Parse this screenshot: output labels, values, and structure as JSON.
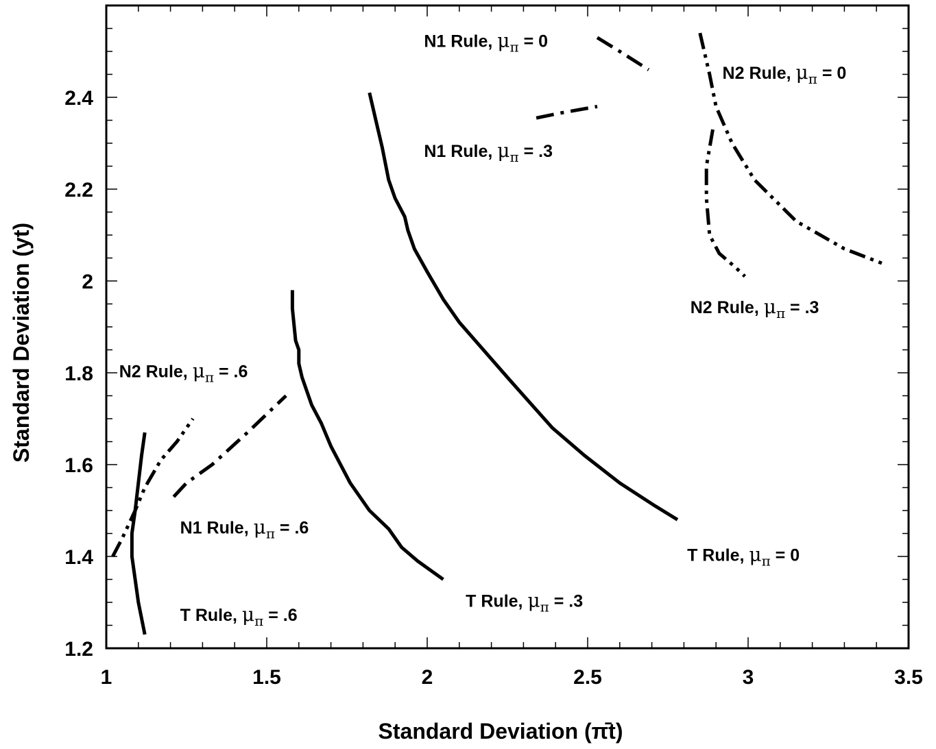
{
  "chart_data": {
    "type": "line",
    "title": "",
    "xlabel": "Standard Deviation (π̄t)",
    "ylabel": "Standard Deviation (yt)",
    "xlim": [
      1,
      3.5
    ],
    "ylim": [
      1.2,
      2.6
    ],
    "xticks": [
      1,
      1.5,
      2,
      2.5,
      3,
      3.5
    ],
    "xtick_labels": [
      "1",
      "1.5",
      "2",
      "2.5",
      "3",
      "3.5"
    ],
    "yticks": [
      1.2,
      1.4,
      1.6,
      1.8,
      2,
      2.2,
      2.4
    ],
    "ytick_labels": [
      "1.2",
      "1.4",
      "1.6",
      "1.8",
      "2",
      "2.2",
      "2.4"
    ],
    "x_minor_step": 0.1,
    "y_minor_step": 0.05,
    "grid": false,
    "legend": "none",
    "series": [
      {
        "name": "T Rule, μπ = 0",
        "style": "solid",
        "x": [
          1.82,
          1.84,
          1.86,
          1.88,
          1.9,
          1.93,
          1.94,
          1.96,
          2.0,
          2.05,
          2.1,
          2.15,
          2.25,
          2.39,
          2.49,
          2.6,
          2.71,
          2.78
        ],
        "y": [
          2.41,
          2.35,
          2.29,
          2.22,
          2.18,
          2.14,
          2.11,
          2.07,
          2.02,
          1.96,
          1.91,
          1.87,
          1.79,
          1.68,
          1.62,
          1.56,
          1.51,
          1.48
        ]
      },
      {
        "name": "T Rule, μπ = .3",
        "style": "solid",
        "x": [
          1.58,
          1.58,
          1.59,
          1.6,
          1.6,
          1.61,
          1.64,
          1.67,
          1.7,
          1.76,
          1.82,
          1.88,
          1.92,
          1.97,
          2.05
        ],
        "y": [
          1.98,
          1.94,
          1.87,
          1.85,
          1.82,
          1.79,
          1.73,
          1.69,
          1.64,
          1.56,
          1.5,
          1.46,
          1.42,
          1.39,
          1.35
        ]
      },
      {
        "name": "T Rule, μπ = .6",
        "style": "solid",
        "x": [
          1.12,
          1.11,
          1.1,
          1.09,
          1.08,
          1.08,
          1.09,
          1.1,
          1.12
        ],
        "y": [
          1.67,
          1.62,
          1.56,
          1.5,
          1.45,
          1.4,
          1.35,
          1.3,
          1.23
        ]
      },
      {
        "name": "N1 Rule, μπ = 0",
        "style": "dashdot",
        "x": [
          2.53,
          2.6,
          2.69
        ],
        "y": [
          2.53,
          2.5,
          2.46
        ]
      },
      {
        "name": "N1 Rule, μπ = .3",
        "style": "dashdot",
        "x": [
          2.34,
          2.41,
          2.53
        ],
        "y": [
          2.355,
          2.365,
          2.38
        ]
      },
      {
        "name": "N1 Rule, μπ = .6",
        "style": "dashdot",
        "x": [
          1.21,
          1.25,
          1.33,
          1.44,
          1.56
        ],
        "y": [
          1.53,
          1.56,
          1.6,
          1.67,
          1.75
        ]
      },
      {
        "name": "N2 Rule, μπ = 0",
        "style": "dashdotdot",
        "x": [
          2.85,
          2.88,
          2.9,
          2.95,
          3.02,
          3.15,
          3.3,
          3.43
        ],
        "y": [
          2.54,
          2.45,
          2.38,
          2.3,
          2.22,
          2.13,
          2.07,
          2.035
        ]
      },
      {
        "name": "N2 Rule, μπ = .3",
        "style": "dashdotdot",
        "x": [
          2.89,
          2.87,
          2.87,
          2.88,
          2.91,
          2.96,
          2.99
        ],
        "y": [
          2.33,
          2.25,
          2.18,
          2.1,
          2.06,
          2.03,
          2.01
        ]
      },
      {
        "name": "N2 Rule, μπ = .6",
        "style": "dashdotdot",
        "x": [
          1.02,
          1.05,
          1.09,
          1.12,
          1.17,
          1.22,
          1.27
        ],
        "y": [
          1.4,
          1.44,
          1.5,
          1.55,
          1.61,
          1.65,
          1.7
        ]
      }
    ],
    "annotations": [
      {
        "id": "n1-0",
        "rule": "N1 Rule, ",
        "mu": "μ",
        "sub": "π",
        "eq": " = 0",
        "x": 1.99,
        "y": 2.51,
        "anchor": "start"
      },
      {
        "id": "n2-0",
        "rule": "N2 Rule, ",
        "mu": "μ",
        "sub": "π",
        "eq": " = 0",
        "x": 2.92,
        "y": 2.44,
        "anchor": "start"
      },
      {
        "id": "n1-3",
        "rule": "N1 Rule, ",
        "mu": "μ",
        "sub": "π",
        "eq": " = .3",
        "x": 1.99,
        "y": 2.27,
        "anchor": "start"
      },
      {
        "id": "n2-3",
        "rule": "N2 Rule, ",
        "mu": "μ",
        "sub": "π",
        "eq": " = .3",
        "x": 2.82,
        "y": 1.93,
        "anchor": "start"
      },
      {
        "id": "n2-6",
        "rule": "N2 Rule, ",
        "mu": "μ",
        "sub": "π",
        "eq": " = .6",
        "x": 1.04,
        "y": 1.79,
        "anchor": "start"
      },
      {
        "id": "n1-6",
        "rule": "N1 Rule, ",
        "mu": "μ",
        "sub": "π",
        "eq": " = .6",
        "x": 1.23,
        "y": 1.45,
        "anchor": "start"
      },
      {
        "id": "t-0",
        "rule": "T Rule, ",
        "mu": "μ",
        "sub": "π",
        "eq": " = 0",
        "x": 2.81,
        "y": 1.39,
        "anchor": "start"
      },
      {
        "id": "t-3",
        "rule": "T Rule, ",
        "mu": "μ",
        "sub": "π",
        "eq": " = .3",
        "x": 2.12,
        "y": 1.29,
        "anchor": "start"
      },
      {
        "id": "t-6",
        "rule": "T Rule, ",
        "mu": "μ",
        "sub": "π",
        "eq": " = .6",
        "x": 1.23,
        "y": 1.26,
        "anchor": "start"
      }
    ]
  }
}
